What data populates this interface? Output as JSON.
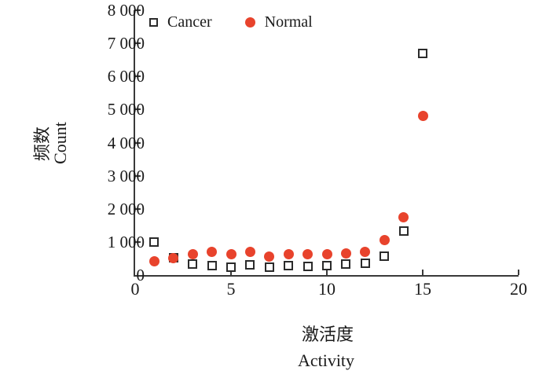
{
  "chart_data": {
    "type": "scatter",
    "title": "",
    "x": [
      1,
      2,
      3,
      4,
      5,
      6,
      7,
      8,
      9,
      10,
      11,
      12,
      13,
      14,
      15
    ],
    "series": [
      {
        "name": "Cancer",
        "marker": "open-square",
        "color": "#2b2b2b",
        "values": [
          1000,
          520,
          330,
          280,
          240,
          300,
          240,
          280,
          260,
          280,
          330,
          360,
          570,
          1340,
          6700
        ]
      },
      {
        "name": "Normal",
        "marker": "filled-circle",
        "color": "#E8432C",
        "values": [
          420,
          520,
          640,
          710,
          620,
          710,
          550,
          640,
          640,
          640,
          660,
          690,
          1050,
          1750,
          4800
        ]
      }
    ],
    "xlabel_zh": "激活度",
    "xlabel_en": "Activity",
    "ylabel_zh": "频数",
    "ylabel_en": "Count",
    "xlim": [
      0,
      20
    ],
    "ylim": [
      0,
      8000
    ],
    "x_ticks": [
      {
        "value": 0,
        "label": "0"
      },
      {
        "value": 5,
        "label": "5"
      },
      {
        "value": 10,
        "label": "10"
      },
      {
        "value": 15,
        "label": "15"
      },
      {
        "value": 20,
        "label": "20"
      }
    ],
    "y_ticks": [
      {
        "value": 0,
        "label": "0"
      },
      {
        "value": 1000,
        "label": "1 000"
      },
      {
        "value": 2000,
        "label": "2 000"
      },
      {
        "value": 3000,
        "label": "3 000"
      },
      {
        "value": 4000,
        "label": "4 000"
      },
      {
        "value": 5000,
        "label": "5 000"
      },
      {
        "value": 6000,
        "label": "6 000"
      },
      {
        "value": 7000,
        "label": "7 000"
      },
      {
        "value": 8000,
        "label": "8 000"
      }
    ],
    "legend_position": "top-left-inside",
    "grid": false
  }
}
